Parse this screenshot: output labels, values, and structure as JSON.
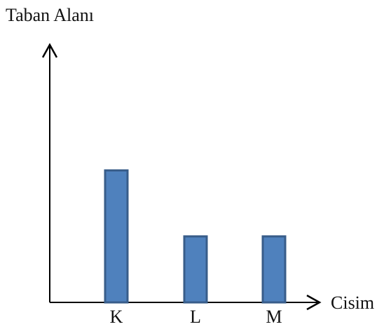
{
  "chart_data": {
    "type": "bar",
    "ylabel": "Taban Alanı",
    "xlabel": "Cisim",
    "categories": [
      "K",
      "L",
      "M"
    ],
    "values": [
      2,
      1,
      1
    ],
    "ylim": [
      0,
      3.5
    ],
    "grid": false,
    "legend": "none",
    "bar_color": "#4f81bd",
    "bar_edge_color": "#385d8a",
    "axis_color": "#000000"
  }
}
